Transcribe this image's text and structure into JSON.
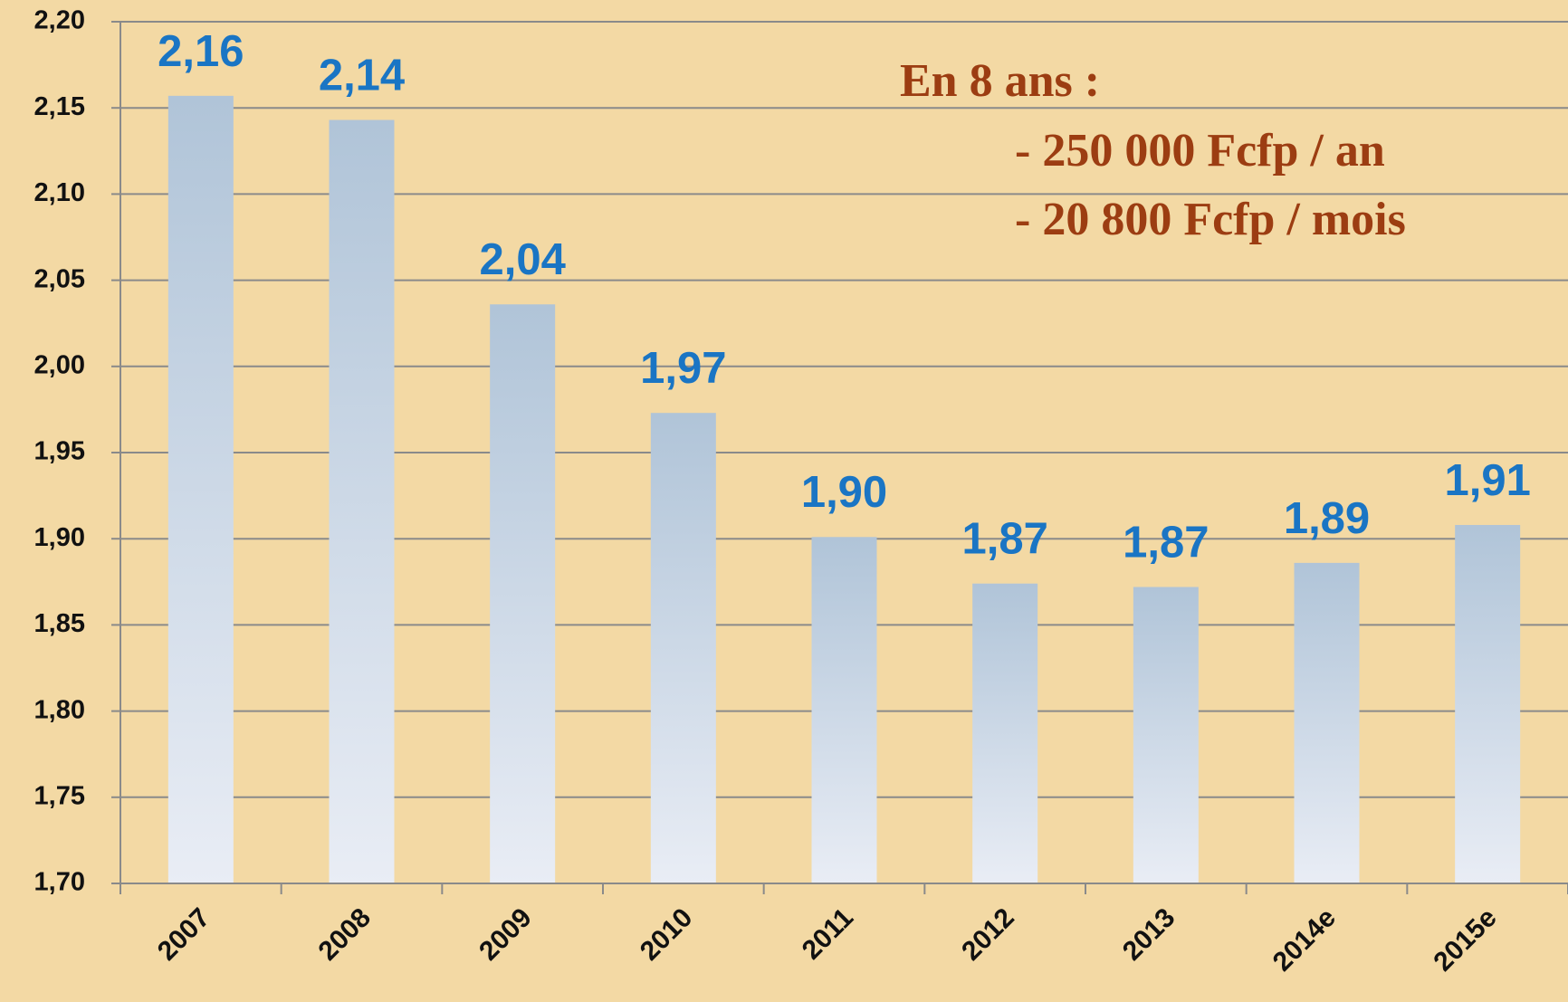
{
  "chart_data": {
    "type": "bar",
    "categories": [
      "2007",
      "2008",
      "2009",
      "2010",
      "2011",
      "2012",
      "2013",
      "2014e",
      "2015e"
    ],
    "values": [
      2.157,
      2.143,
      2.036,
      1.973,
      1.901,
      1.874,
      1.872,
      1.886,
      1.908
    ],
    "value_labels": [
      "2,16",
      "2,14",
      "2,04",
      "1,97",
      "1,90",
      "1,87",
      "1,87",
      "1,89",
      "1,91"
    ],
    "color": "#b0c4d8",
    "ylim": [
      1.7,
      2.2
    ],
    "yticks": [
      {
        "value": 1.7,
        "label": "1,70"
      },
      {
        "value": 1.75,
        "label": "1,75"
      },
      {
        "value": 1.8,
        "label": "1,80"
      },
      {
        "value": 1.85,
        "label": "1,85"
      },
      {
        "value": 1.9,
        "label": "1,90"
      },
      {
        "value": 1.95,
        "label": "1,95"
      },
      {
        "value": 2.0,
        "label": "2,00"
      },
      {
        "value": 2.05,
        "label": "2,05"
      },
      {
        "value": 2.1,
        "label": "2,10"
      },
      {
        "value": 2.15,
        "label": "2,15"
      },
      {
        "value": 2.2,
        "label": "2,20"
      }
    ],
    "grid": true,
    "annotations": [
      "En 8 ans :",
      "- 250 000 Fcfp / an",
      "- 20 800 Fcfp / mois"
    ]
  }
}
